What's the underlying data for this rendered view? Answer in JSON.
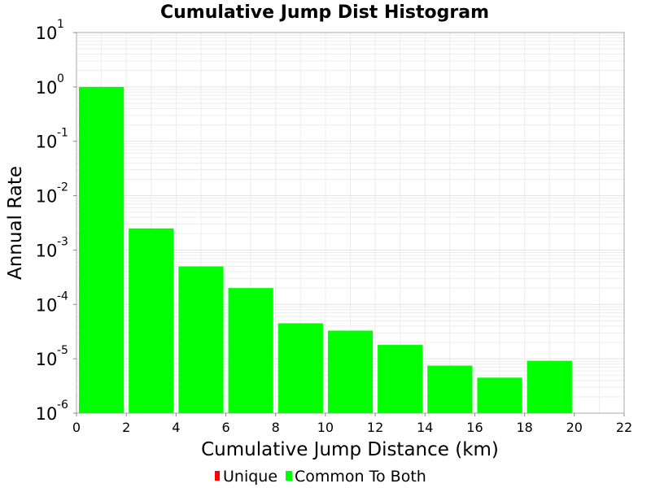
{
  "chart_data": {
    "type": "bar",
    "title": "Cumulative Jump Dist Histogram",
    "xlabel": "Cumulative Jump Distance (km)",
    "ylabel": "Annual Rate",
    "x_scale": "linear",
    "y_scale": "log",
    "xlim": [
      0,
      22
    ],
    "ylim": [
      1e-06,
      10
    ],
    "x_ticks": [
      "0",
      "2",
      "4",
      "6",
      "8",
      "10",
      "12",
      "14",
      "16",
      "18",
      "20",
      "22"
    ],
    "y_ticks": [
      {
        "base": "10",
        "exp": "1"
      },
      {
        "base": "10",
        "exp": "0"
      },
      {
        "base": "10",
        "exp": "-1"
      },
      {
        "base": "10",
        "exp": "-2"
      },
      {
        "base": "10",
        "exp": "-3"
      },
      {
        "base": "10",
        "exp": "-4"
      },
      {
        "base": "10",
        "exp": "-5"
      },
      {
        "base": "10",
        "exp": "-6"
      }
    ],
    "bin_width": 2,
    "series": [
      {
        "name": "Unique",
        "color": "#ff0000",
        "x": [],
        "values": []
      },
      {
        "name": "Common To Both",
        "color": "#00ff00",
        "x": [
          1,
          3,
          5,
          7,
          9,
          11,
          13,
          15,
          17,
          19
        ],
        "values": [
          1.0,
          0.0025,
          0.0005,
          0.0002,
          4.5e-05,
          3.3e-05,
          1.8e-05,
          7.5e-06,
          4.5e-06,
          9.2e-06
        ]
      }
    ],
    "legend": [
      {
        "label": "Unique",
        "color": "#ff0000"
      },
      {
        "label": "Common To Both",
        "color": "#00ff00"
      }
    ],
    "legend_position": "bottom-center",
    "grid": true
  }
}
